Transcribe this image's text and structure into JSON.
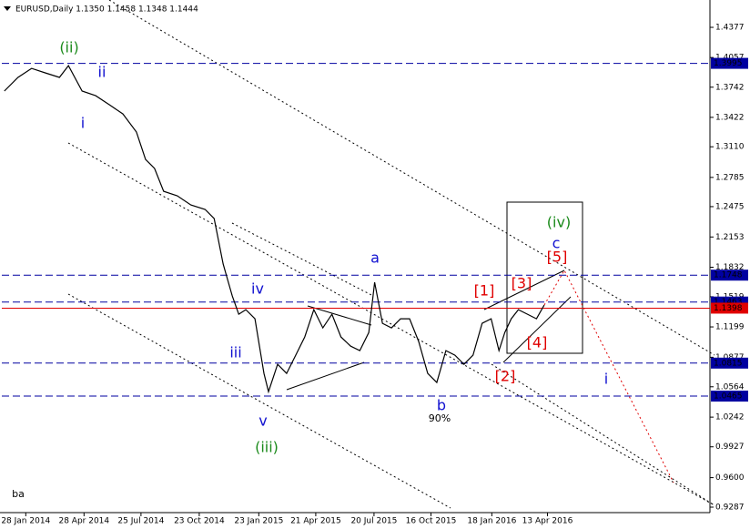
{
  "chart_data": {
    "type": "line",
    "title": "EURUSD,Daily  1.1350 1.1458 1.1348 1.1444",
    "series": [
      {
        "color": "#000000",
        "x": [
          "2013-12-26",
          "2014-01-16",
          "2014-02-06",
          "2014-02-27",
          "2014-03-21",
          "2014-04-04",
          "2014-04-25",
          "2014-05-16",
          "2014-06-06",
          "2014-06-27",
          "2014-07-18",
          "2014-08-01",
          "2014-08-15",
          "2014-08-29",
          "2014-09-19",
          "2014-10-10",
          "2014-11-01",
          "2014-11-15",
          "2014-11-29",
          "2014-12-13",
          "2014-12-23",
          "2015-01-03",
          "2015-01-17",
          "2015-01-31",
          "2015-02-07",
          "2015-02-21",
          "2015-03-07",
          "2015-03-21",
          "2015-04-04",
          "2015-04-18",
          "2015-05-02",
          "2015-05-16",
          "2015-05-30",
          "2015-06-14",
          "2015-06-28",
          "2015-07-12",
          "2015-07-21",
          "2015-08-02",
          "2015-08-16",
          "2015-08-30",
          "2015-09-13",
          "2015-09-27",
          "2015-10-11",
          "2015-10-25",
          "2015-11-08",
          "2015-11-22",
          "2015-12-06",
          "2015-12-20",
          "2016-01-03",
          "2016-01-17",
          "2016-01-29",
          "2016-02-07",
          "2016-02-17",
          "2016-02-28",
          "2016-03-13",
          "2016-03-27",
          "2016-04-08"
        ],
        "values": [
          1.3701,
          1.3846,
          1.3942,
          1.3894,
          1.3846,
          1.3971,
          1.3701,
          1.3652,
          1.3556,
          1.3459,
          1.3266,
          1.2976,
          1.288,
          1.2638,
          1.259,
          1.2493,
          1.2445,
          1.2348,
          1.1865,
          1.1527,
          1.1334,
          1.1382,
          1.1285,
          1.0706,
          1.0512,
          1.0802,
          1.0706,
          1.0899,
          1.1092,
          1.1382,
          1.1189,
          1.1334,
          1.1092,
          1.0995,
          1.0947,
          1.114,
          1.1672,
          1.1237,
          1.1189,
          1.1285,
          1.1285,
          1.1044,
          1.0706,
          1.0609,
          1.0947,
          1.0899,
          1.0802,
          1.0899,
          1.1237,
          1.1285,
          1.0947,
          1.114,
          1.1285,
          1.1382,
          1.1334,
          1.1285,
          1.143
        ]
      }
    ],
    "xlim": [
      "2013-12-22",
      "2016-12-20"
    ],
    "xticks": [
      {
        "value": "2014-01-28",
        "label": "28 Jan 2014"
      },
      {
        "value": "2014-04-28",
        "label": "28 Apr 2014"
      },
      {
        "value": "2014-07-25",
        "label": "25 Jul 2014"
      },
      {
        "value": "2014-10-23",
        "label": "23 Oct 2014"
      },
      {
        "value": "2015-01-23",
        "label": "23 Jan 2015"
      },
      {
        "value": "2015-04-21",
        "label": "21 Apr 2015"
      },
      {
        "value": "2015-07-20",
        "label": "20 Jul 2015"
      },
      {
        "value": "2015-10-16",
        "label": "16 Oct 2015"
      },
      {
        "value": "2016-01-18",
        "label": "18 Jan 2016"
      },
      {
        "value": "2016-04-13",
        "label": "13 Apr 2016"
      }
    ],
    "ylim": [
      0.9229,
      1.4667
    ],
    "yticks": [
      1.4377,
      1.4057,
      1.3742,
      1.3422,
      {
        "value": 1.311,
        "label": "1.3110"
      },
      1.2785,
      1.2475,
      1.2153,
      1.1832,
      1.1519,
      1.1199,
      1.0877,
      1.0564,
      1.0242,
      0.9927,
      {
        "value": 0.96,
        "label": "0.9600"
      },
      0.9287
    ],
    "levels": [
      1.3995,
      1.1748,
      1.1463,
      1.0815,
      1.0465
    ],
    "level_color": "#0000a0",
    "price_line": 1.1398,
    "price_line_color": "#e00000",
    "annotations": [
      {
        "text": "(ii)",
        "color": "#1a8a1a"
      },
      {
        "text": "ii",
        "color": "#1010d0"
      },
      {
        "text": "i",
        "color": "#1010d0"
      },
      {
        "text": "iii",
        "color": "#1010d0"
      },
      {
        "text": "iv",
        "color": "#1010d0"
      },
      {
        "text": "v",
        "color": "#1010d0"
      },
      {
        "text": "(iii)",
        "color": "#1a8a1a"
      },
      {
        "text": "a",
        "color": "#1010d0"
      },
      {
        "text": "b",
        "color": "#1010d0"
      },
      {
        "text": "90%",
        "color": "#000000"
      },
      {
        "text": "(iv)",
        "color": "#1a8a1a"
      },
      {
        "text": "c",
        "color": "#1010d0"
      },
      {
        "text": "[5]",
        "color": "#e00000"
      },
      {
        "text": "[3]",
        "color": "#e00000"
      },
      {
        "text": "[1]",
        "color": "#e00000"
      },
      {
        "text": "[4]",
        "color": "#e00000"
      },
      {
        "text": "[2]",
        "color": "#e00000"
      },
      {
        "text": "i",
        "color": "#1010d0"
      },
      {
        "text": "ba",
        "color": "#000000"
      }
    ]
  }
}
